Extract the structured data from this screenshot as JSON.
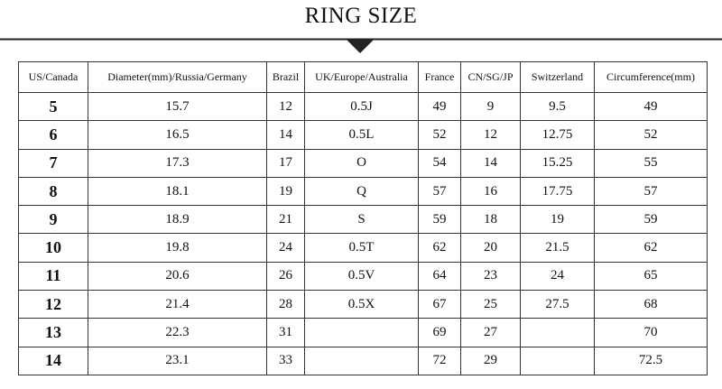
{
  "header": {
    "title": "RING SIZE"
  },
  "table": {
    "columns": [
      "US/Canada",
      "Diameter(mm)/Russia/Germany",
      "Brazil",
      "UK/Europe/Australia",
      "France",
      "CN/SG/JP",
      "Switzerland",
      "Circumference(mm)"
    ],
    "rows": [
      [
        "5",
        "15.7",
        "12",
        "0.5J",
        "49",
        "9",
        "9.5",
        "49"
      ],
      [
        "6",
        "16.5",
        "14",
        "0.5L",
        "52",
        "12",
        "12.75",
        "52"
      ],
      [
        "7",
        "17.3",
        "17",
        "O",
        "54",
        "14",
        "15.25",
        "55"
      ],
      [
        "8",
        "18.1",
        "19",
        "Q",
        "57",
        "16",
        "17.75",
        "57"
      ],
      [
        "9",
        "18.9",
        "21",
        "S",
        "59",
        "18",
        "19",
        "59"
      ],
      [
        "10",
        "19.8",
        "24",
        "0.5T",
        "62",
        "20",
        "21.5",
        "62"
      ],
      [
        "11",
        "20.6",
        "26",
        "0.5V",
        "64",
        "23",
        "24",
        "65"
      ],
      [
        "12",
        "21.4",
        "28",
        "0.5X",
        "67",
        "25",
        "27.5",
        "68"
      ],
      [
        "13",
        "22.3",
        "31",
        null,
        "69",
        "27",
        null,
        "70"
      ],
      [
        "14",
        "23.1",
        "33",
        null,
        "72",
        "29",
        null,
        "72.5"
      ]
    ]
  }
}
